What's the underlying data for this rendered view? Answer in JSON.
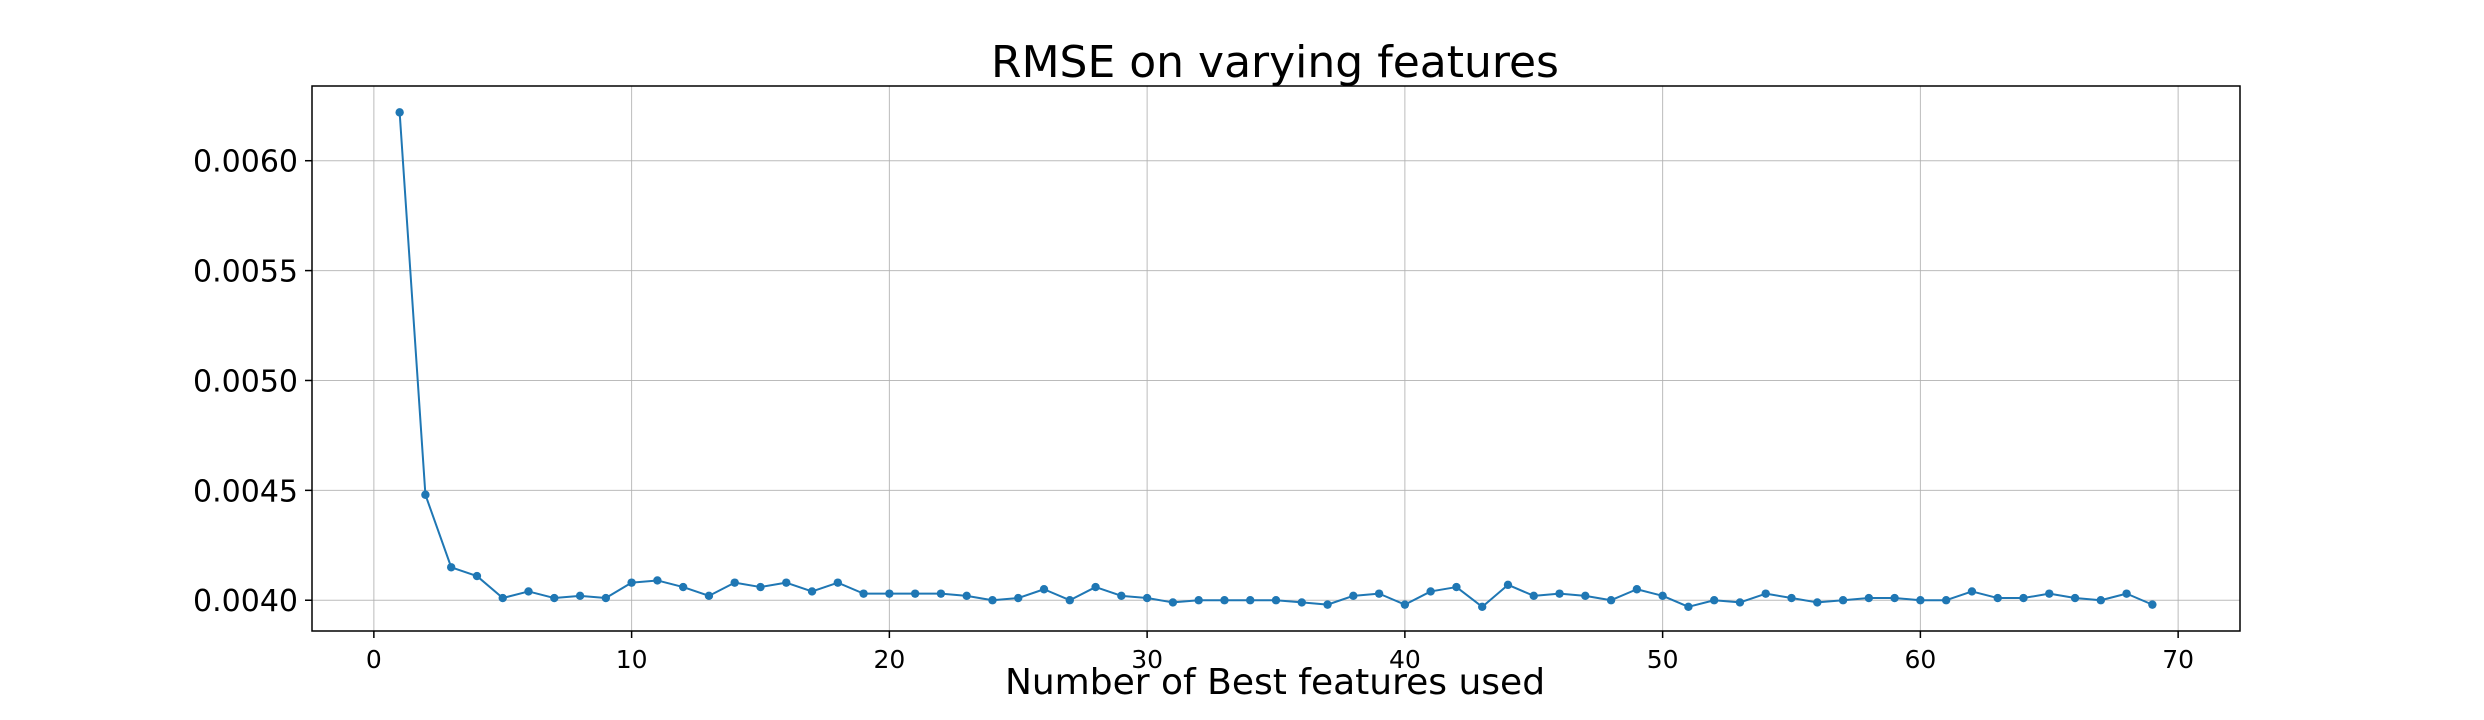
{
  "chart_data": {
    "type": "line",
    "title": "RMSE on varying features",
    "xlabel": "Number of Best features used",
    "ylabel": "",
    "xlim": [
      -2.4,
      72.4
    ],
    "ylim": [
      0.00386,
      0.00634
    ],
    "x_ticks": [
      0,
      10,
      20,
      30,
      40,
      50,
      60,
      70
    ],
    "x_tick_labels": [
      "0",
      "10",
      "20",
      "30",
      "40",
      "50",
      "60",
      "70"
    ],
    "y_ticks": [
      0.004,
      0.0045,
      0.005,
      0.0055,
      0.006
    ],
    "y_tick_labels": [
      "0.0040",
      "0.0045",
      "0.0050",
      "0.0055",
      "0.0060"
    ],
    "grid": true,
    "color": "#1f77b4",
    "x": [
      1,
      2,
      3,
      4,
      5,
      6,
      7,
      8,
      9,
      10,
      11,
      12,
      13,
      14,
      15,
      16,
      17,
      18,
      19,
      20,
      21,
      22,
      23,
      24,
      25,
      26,
      27,
      28,
      29,
      30,
      31,
      32,
      33,
      34,
      35,
      36,
      37,
      38,
      39,
      40,
      41,
      42,
      43,
      44,
      45,
      46,
      47,
      48,
      49,
      50,
      51,
      52,
      53,
      54,
      55,
      56,
      57,
      58,
      59,
      60,
      61,
      62,
      63,
      64,
      65,
      66,
      67,
      68,
      69
    ],
    "y": [
      0.00622,
      0.00448,
      0.00415,
      0.00411,
      0.00401,
      0.00404,
      0.00401,
      0.00402,
      0.00401,
      0.00408,
      0.00409,
      0.00406,
      0.00402,
      0.00408,
      0.00406,
      0.00408,
      0.00404,
      0.00408,
      0.00403,
      0.00403,
      0.00403,
      0.00403,
      0.00402,
      0.004,
      0.00401,
      0.00405,
      0.004,
      0.00406,
      0.00402,
      0.00401,
      0.00399,
      0.004,
      0.004,
      0.004,
      0.004,
      0.00399,
      0.00398,
      0.00402,
      0.00403,
      0.00398,
      0.00404,
      0.00406,
      0.00397,
      0.00407,
      0.00402,
      0.00403,
      0.00402,
      0.004,
      0.00405,
      0.00402,
      0.00397,
      0.004,
      0.00399,
      0.00403,
      0.00401,
      0.00399,
      0.004,
      0.00401,
      0.00401,
      0.004,
      0.004,
      0.00404,
      0.00401,
      0.00401,
      0.00403,
      0.00401,
      0.004,
      0.00403,
      0.00398
    ]
  }
}
